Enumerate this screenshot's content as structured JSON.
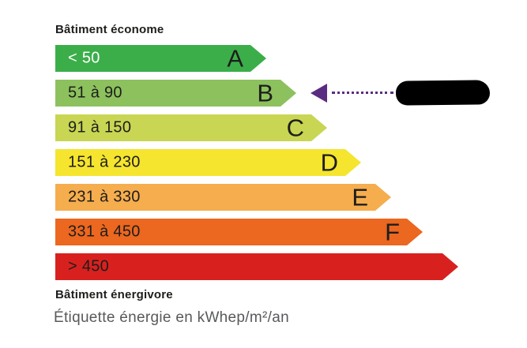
{
  "labels": {
    "top": "Bâtiment économe",
    "bottom": "Bâtiment énergivore",
    "caption": "Étiquette énergie en kWhep/m²/an"
  },
  "colors": {
    "text_dark": "#1d1d1b",
    "caption_gray": "#58595b",
    "marker_purple": "#5a2c81",
    "redaction_black": "#000000"
  },
  "chart_data": {
    "type": "bar",
    "title": "Étiquette énergie en kWhep/m²/an",
    "unit": "kWhep/m²/an",
    "orientation": "horizontal",
    "top_scale_label": "Bâtiment économe",
    "bottom_scale_label": "Bâtiment énergivore",
    "rows": [
      {
        "id": "A",
        "range": "< 50",
        "letter": "A",
        "color": "#3bae4a",
        "text_color": "#ffffff",
        "body_width": 247
      },
      {
        "id": "B",
        "range": "51 à 90",
        "letter": "B",
        "color": "#8cc15e",
        "text_color": "#1d1d1b",
        "body_width": 285
      },
      {
        "id": "C",
        "range": "91 à 150",
        "letter": "C",
        "color": "#c8d653",
        "text_color": "#1d1d1b",
        "body_width": 324
      },
      {
        "id": "D",
        "range": "151 à 230",
        "letter": "D",
        "color": "#f5e52e",
        "text_color": "#1d1d1b",
        "body_width": 367
      },
      {
        "id": "E",
        "range": "231 à 330",
        "letter": "E",
        "color": "#f5ad4e",
        "text_color": "#1d1d1b",
        "body_width": 405
      },
      {
        "id": "F",
        "range": "331 à 450",
        "letter": "F",
        "color": "#ec671f",
        "text_color": "#1d1d1b",
        "body_width": 445
      },
      {
        "id": "G",
        "range": "> 450",
        "letter": "",
        "color": "#d8211f",
        "text_color": "#1d1d1b",
        "body_width": 490
      }
    ],
    "marker": {
      "points_to": "B",
      "color": "#5a2c81",
      "line_style": "dotted",
      "value_redacted": true
    }
  }
}
